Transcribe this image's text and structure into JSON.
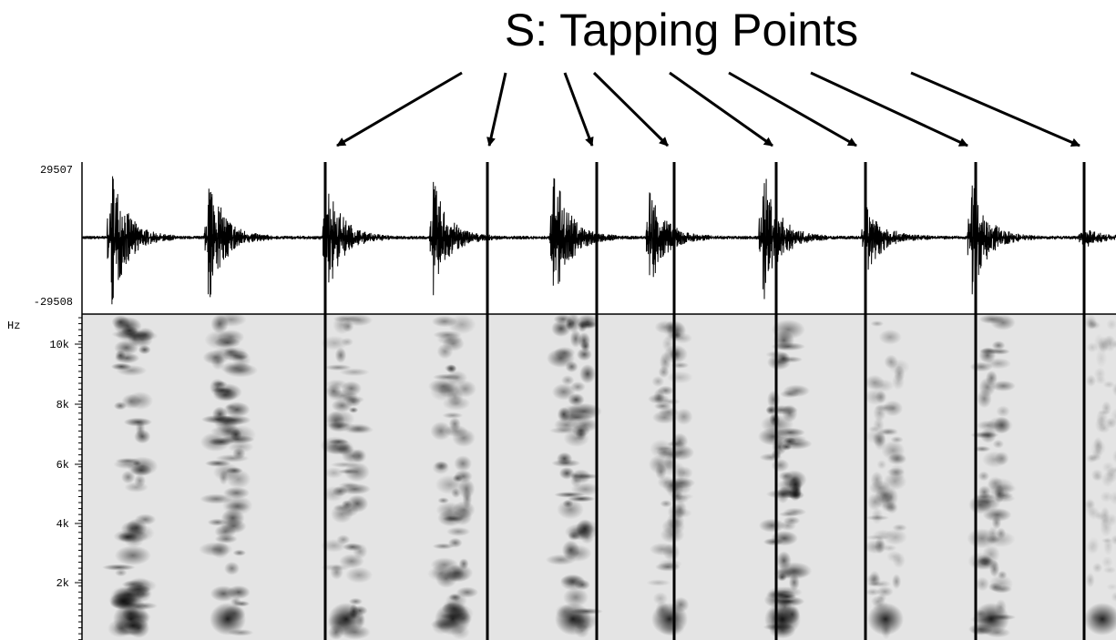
{
  "title": "S: Tapping Points",
  "waveform": {
    "max_label": "29507",
    "min_label": "-29508"
  },
  "spectrogram": {
    "unit": "Hz",
    "tick_labels": [
      "10k",
      "8k",
      "6k",
      "4k",
      "2k"
    ]
  }
}
